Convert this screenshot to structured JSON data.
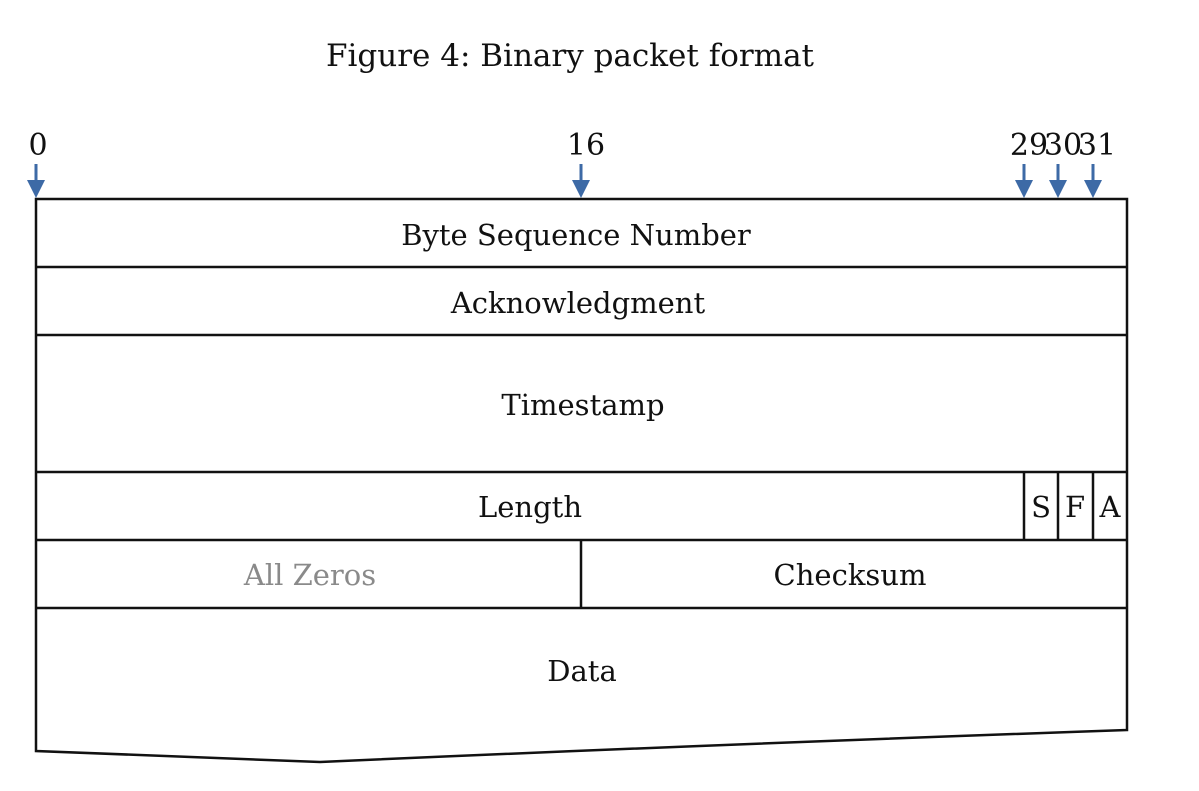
{
  "title": "Figure 4: Binary packet format",
  "bit_positions": [
    {
      "label": "0",
      "bit": 0
    },
    {
      "label": "16",
      "bit": 16
    },
    {
      "label": "29",
      "bit": 29
    },
    {
      "label": "30",
      "bit": 30
    },
    {
      "label": "31",
      "bit": 31
    }
  ],
  "fields": {
    "byte_sequence_number": "Byte Sequence Number",
    "acknowledgment": "Acknowledgment",
    "timestamp": "Timestamp",
    "length": "Length",
    "flag_s": "S",
    "flag_f": "F",
    "flag_a": "A",
    "all_zeros": "All Zeros",
    "checksum": "Checksum",
    "data": "Data"
  },
  "colors": {
    "arrow": "#3d6aa6",
    "muted_text": "#8a8a8a"
  }
}
